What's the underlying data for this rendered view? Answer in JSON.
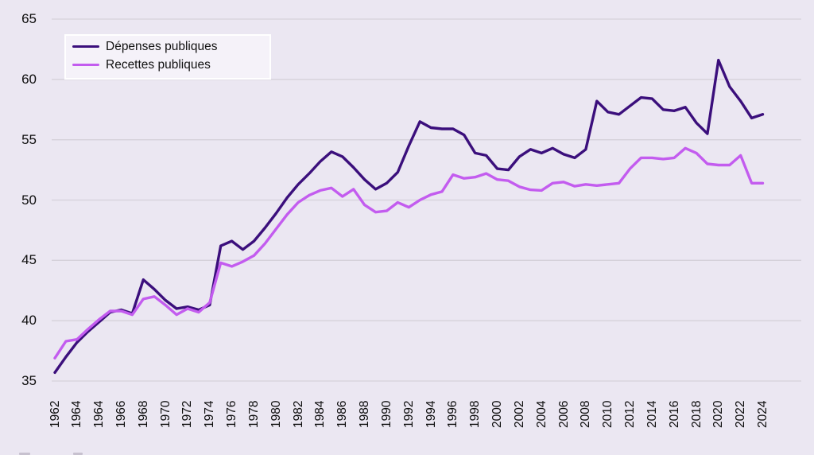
{
  "page": {
    "background_color": "#ebe7f2",
    "gridline_color": "#d5d1da",
    "text_color": "#0d0d0d"
  },
  "legend": {
    "items": [
      {
        "key": "depenses",
        "label": "Dépenses publiques",
        "color": "#3b0f7c"
      },
      {
        "key": "recettes",
        "label": "Recettes publiques",
        "color": "#c35cef"
      }
    ]
  },
  "chart_data": {
    "type": "line",
    "title": "",
    "xlabel": "",
    "ylabel": "",
    "ylim": [
      35,
      65
    ],
    "y_ticks": [
      65,
      60,
      55,
      50,
      45,
      40,
      35
    ],
    "grid": "horizontal",
    "legend_position": "top-left",
    "x_tick_labels": [
      "1962",
      "1964",
      "1964",
      "1966",
      "1968",
      "1970",
      "1972",
      "1974",
      "1976",
      "1978",
      "1980",
      "1982",
      "1984",
      "1986",
      "1988",
      "1990",
      "1992",
      "1994",
      "1996",
      "1998",
      "2000",
      "2002",
      "2004",
      "2006",
      "2008",
      "2010",
      "2012",
      "2014",
      "2016",
      "2018",
      "2020",
      "2022",
      "2024"
    ],
    "x_years": [
      1962,
      1963,
      1964,
      1964,
      1964,
      1965,
      1966,
      1967,
      1968,
      1969,
      1970,
      1971,
      1972,
      1973,
      1974,
      1975,
      1976,
      1977,
      1978,
      1979,
      1980,
      1981,
      1982,
      1983,
      1984,
      1985,
      1986,
      1987,
      1988,
      1989,
      1990,
      1991,
      1992,
      1993,
      1994,
      1995,
      1996,
      1997,
      1998,
      1999,
      2000,
      2001,
      2002,
      2003,
      2004,
      2005,
      2006,
      2007,
      2008,
      2009,
      2010,
      2011,
      2012,
      2013,
      2014,
      2015,
      2016,
      2017,
      2018,
      2019,
      2020,
      2021,
      2022,
      2023,
      2024
    ],
    "series": [
      {
        "key": "depenses",
        "name": "Dépenses publiques",
        "color": "#3b0f7c",
        "values": [
          35.7,
          37.0,
          38.2,
          39.1,
          39.9,
          40.7,
          40.9,
          40.6,
          43.4,
          42.6,
          41.7,
          41.0,
          41.15,
          40.9,
          41.3,
          46.2,
          46.6,
          45.9,
          46.6,
          47.7,
          48.9,
          50.2,
          51.3,
          52.2,
          53.2,
          54.0,
          53.6,
          52.7,
          51.7,
          50.9,
          51.4,
          52.3,
          54.5,
          56.5,
          56.0,
          55.9,
          55.9,
          55.4,
          53.9,
          53.7,
          52.6,
          52.5,
          53.6,
          54.2,
          53.9,
          54.3,
          53.8,
          53.5,
          54.2,
          58.2,
          57.3,
          57.1,
          57.8,
          58.5,
          58.4,
          57.5,
          57.4,
          57.7,
          56.4,
          55.5,
          61.6,
          59.4,
          58.2,
          56.8,
          57.1
        ]
      },
      {
        "key": "recettes",
        "name": "Recettes publiques",
        "color": "#c35cef",
        "values": [
          36.9,
          38.3,
          38.45,
          39.3,
          40.1,
          40.8,
          40.8,
          40.5,
          41.8,
          42.0,
          41.3,
          40.5,
          41.0,
          40.7,
          41.5,
          44.8,
          44.5,
          44.9,
          45.4,
          46.4,
          47.6,
          48.8,
          49.8,
          50.4,
          50.8,
          51.0,
          50.3,
          50.9,
          49.6,
          49.0,
          49.1,
          49.8,
          49.4,
          50.0,
          50.45,
          50.7,
          52.1,
          51.8,
          51.9,
          52.2,
          51.7,
          51.6,
          51.1,
          50.85,
          50.8,
          51.4,
          51.5,
          51.15,
          51.3,
          51.2,
          51.3,
          51.4,
          52.6,
          53.5,
          53.5,
          53.4,
          53.5,
          54.3,
          53.9,
          53.0,
          52.9,
          52.9,
          53.7,
          51.4,
          51.4
        ]
      }
    ]
  }
}
